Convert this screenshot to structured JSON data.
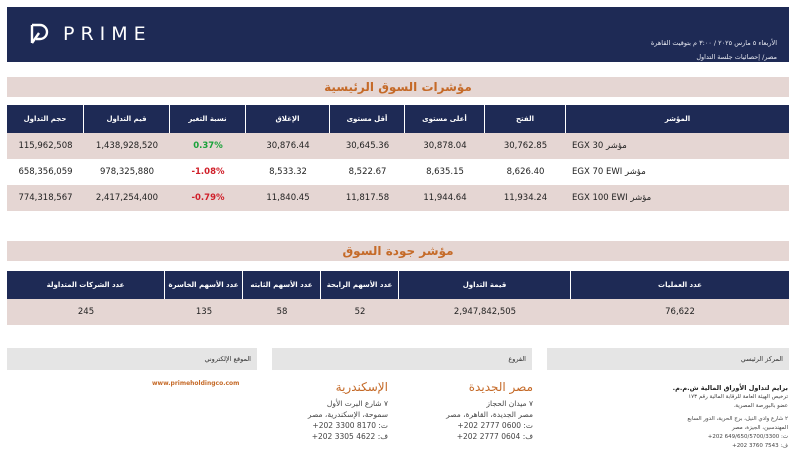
{
  "header": {
    "brand": "PRIME",
    "date_line": "الأربعاء ٥ مارس ٢٠٢٥ / ٣:٠٠ م بتوقيت القاهرة",
    "sub_line": "مصر/ إحصائيات جلسة التداول"
  },
  "indices": {
    "title": "مؤشرات السوق الرئيسية",
    "columns": [
      "المؤشر",
      "الفتح",
      "أعلى مستوى",
      "أقل مستوى",
      "الإغلاق",
      "نسبة التغير",
      "قيم التداول",
      "حجم التداول"
    ],
    "rows": [
      {
        "name": "مؤشر EGX 30",
        "open": "30,762.85",
        "high": "30,878.04",
        "low": "30,645.36",
        "close": "30,876.44",
        "change": "0.37%",
        "change_dir": "up",
        "value": "1,438,928,520",
        "volume": "115,962,508"
      },
      {
        "name": "مؤشر EGX 70 EWI",
        "open": "8,626.40",
        "high": "8,635.15",
        "low": "8,522.67",
        "close": "8,533.32",
        "change": "-1.08%",
        "change_dir": "down",
        "value": "978,325,880",
        "volume": "658,356,059"
      },
      {
        "name": "مؤشر EGX 100 EWI",
        "open": "11,934.24",
        "high": "11,944.64",
        "low": "11,817.58",
        "close": "11,840.45",
        "change": "-0.79%",
        "change_dir": "down",
        "value": "2,417,254,400",
        "volume": "774,318,567"
      }
    ]
  },
  "quality": {
    "title": "مؤشر جودة السوق",
    "columns": [
      "عدد العمليات",
      "قيمة التداول",
      "عدد الأسهم الرابحة",
      "عدد الأسهم الثابته",
      "عدد الأسهم الخاسرة",
      "عدد الشركات المتداولة"
    ],
    "values": [
      "76,622",
      "2,947,842,505",
      "52",
      "58",
      "135",
      "245"
    ]
  },
  "footer": {
    "hq_label": "المركز الرئيسي",
    "branches_label": "الفروع",
    "website_label": "الموقع الإلكتروني",
    "website": "www.primeholdingco.com",
    "hq_lines": [
      "برايم لتداول الأوراق المالية ش.م.م.",
      "ترخيص الهيئة العامة للرقابة المالية رقم ١٧٣",
      "عضو بالبورصة المصرية.",
      "٢ شارع وادي النيل، برج الحرية، الدور السابع",
      "المهندسين، الجيزة، مصر",
      "ت: 649/650/5700/3300 202+",
      "ف: 7543 3760 202+"
    ],
    "branch1": {
      "city": "مصر الجديدة",
      "lines": [
        "٧ ميدان الحجاز",
        "مصر الجديدة، القاهرة، مصر",
        "ت: 0600 2777 202+",
        "ف: 0604 2777 202+"
      ]
    },
    "branch2": {
      "city": "الإسكندرية",
      "lines": [
        "٧ شارع البرت الأول",
        "سموحة، الإسكندرية، مصر",
        "ت: 8170 3300 202+",
        "ف: 4622 3305 202+"
      ]
    }
  },
  "colors": {
    "navy": "#1e2a55",
    "beige": "#e5d6d3",
    "orange": "#c56a28",
    "green": "#19a23a",
    "red": "#d0202a"
  }
}
